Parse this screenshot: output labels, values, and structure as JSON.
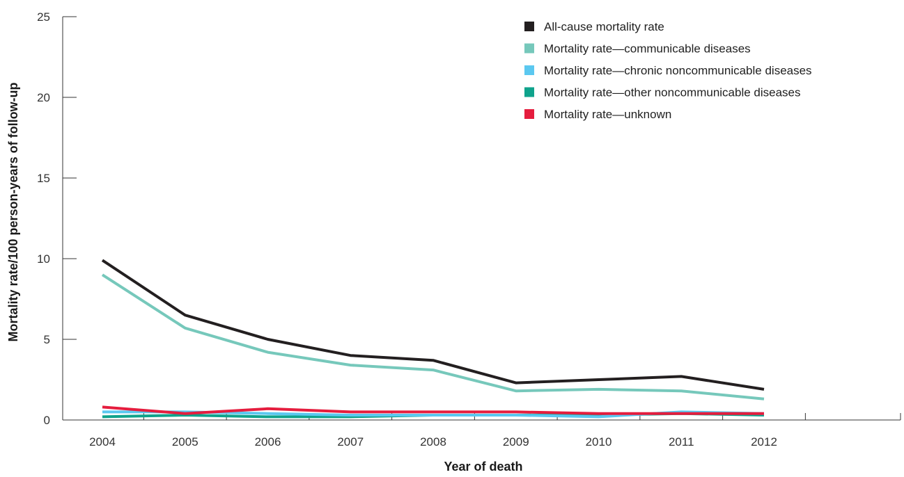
{
  "chart_data": {
    "type": "line",
    "title": "",
    "xlabel": "Year of death",
    "ylabel": "Mortality rate/100 person-years of follow-up",
    "categories": [
      "2004",
      "2005",
      "2006",
      "2007",
      "2008",
      "2009",
      "2010",
      "2011",
      "2012"
    ],
    "yticks": [
      "0",
      "5",
      "10",
      "15",
      "20",
      "25"
    ],
    "ylim": [
      0,
      25
    ],
    "grid": false,
    "legend_position": "top-right",
    "series": [
      {
        "name": "All-cause mortality rate",
        "color": "#231f20",
        "values": [
          9.9,
          6.5,
          5.0,
          4.0,
          3.7,
          2.3,
          2.5,
          2.7,
          1.9
        ]
      },
      {
        "name": "Mortality rate—communicable diseases",
        "color": "#76c8bb",
        "values": [
          9.0,
          5.7,
          4.2,
          3.4,
          3.1,
          1.8,
          1.9,
          1.8,
          1.3
        ]
      },
      {
        "name": "Mortality rate—chronic noncommunicable diseases",
        "color": "#5bc8f0",
        "values": [
          0.5,
          0.5,
          0.4,
          0.3,
          0.3,
          0.3,
          0.2,
          0.5,
          0.4
        ]
      },
      {
        "name": "Mortality rate—other noncommunicable diseases",
        "color": "#0fa38c",
        "values": [
          0.2,
          0.3,
          0.2,
          0.2,
          0.3,
          0.3,
          0.3,
          0.4,
          0.3
        ]
      },
      {
        "name": "Mortality rate—unknown",
        "color": "#e51d3e",
        "values": [
          0.8,
          0.4,
          0.7,
          0.5,
          0.5,
          0.5,
          0.4,
          0.4,
          0.4
        ]
      }
    ]
  }
}
